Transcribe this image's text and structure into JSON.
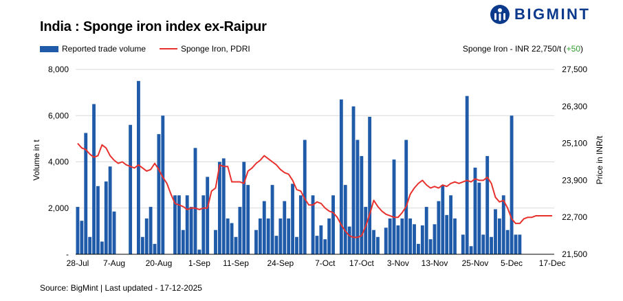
{
  "title": "India : Sponge iron index ex-Raipur",
  "brand": {
    "name": "BIGMINT",
    "logo_icon": "bigmint-logo-icon",
    "color": "#0b3a8c"
  },
  "legend": {
    "bar_label": "Reported trade volume",
    "line_label": "Sponge Iron, PDRI"
  },
  "price_note": {
    "label": "Sponge Iron - INR 22,750/t (",
    "change": "+50",
    "close": ")"
  },
  "source": "Source: BigMint | Last updated - 17-12-2025",
  "colors": {
    "bars": "#1f5ba8",
    "line": "#e8302c",
    "grid": "#d9d9d9",
    "positive": "#2ca02c"
  },
  "chart_data": {
    "type": "bar+line",
    "title": "India : Sponge iron index ex-Raipur",
    "ylabel": "Volume in t",
    "y2label": "Price in INR/t",
    "ylim": [
      0,
      8000
    ],
    "y2lim": [
      21500,
      27500
    ],
    "y_ticks": [
      "-",
      "2,000",
      "4,000",
      "6,000",
      "8,000"
    ],
    "y_tick_values": [
      0,
      2000,
      4000,
      6000,
      8000
    ],
    "y2_ticks": [
      "21,500",
      "22,700",
      "23,900",
      "25,100",
      "26,300",
      "27,500"
    ],
    "y2_tick_values": [
      21500,
      22700,
      23900,
      25100,
      26300,
      27500
    ],
    "x_ticks": [
      {
        "label": "28-Jul",
        "index": 0
      },
      {
        "label": "7-Aug",
        "index": 9
      },
      {
        "label": "20-Aug",
        "index": 20
      },
      {
        "label": "1-Sep",
        "index": 30
      },
      {
        "label": "11-Sep",
        "index": 39
      },
      {
        "label": "24-Sep",
        "index": 50
      },
      {
        "label": "7-Oct",
        "index": 61
      },
      {
        "label": "17-Oct",
        "index": 70
      },
      {
        "label": "3-Nov",
        "index": 79
      },
      {
        "label": "13-Nov",
        "index": 88
      },
      {
        "label": "25-Nov",
        "index": 98
      },
      {
        "label": "5-Dec",
        "index": 107
      },
      {
        "label": "17-Dec",
        "index": 117
      }
    ],
    "count": 118,
    "series": [
      {
        "name": "Reported trade volume",
        "type": "bar",
        "values": [
          2050,
          1450,
          5250,
          750,
          6500,
          2950,
          550,
          3150,
          3800,
          1850,
          0,
          0,
          0,
          5600,
          0,
          7500,
          750,
          1550,
          2050,
          450,
          5200,
          6000,
          0,
          0,
          2550,
          2550,
          1050,
          2550,
          2050,
          4600,
          200,
          2550,
          3350,
          0,
          1050,
          4000,
          4150,
          1550,
          1350,
          750,
          2050,
          4000,
          3000,
          0,
          1050,
          1550,
          2300,
          1550,
          3000,
          800,
          1550,
          2300,
          1550,
          3050,
          750,
          2550,
          4950,
          0,
          2550,
          800,
          1250,
          650,
          1550,
          2550,
          0,
          6700,
          3000,
          1200,
          6400,
          4950,
          4250,
          2050,
          5950,
          1050,
          750,
          0,
          1150,
          1550,
          4100,
          1250,
          1550,
          4950,
          1550,
          1300,
          450,
          1250,
          2050,
          650,
          1300,
          2300,
          3000,
          1700,
          2550,
          1550,
          0,
          850,
          6850,
          350,
          3750,
          3100,
          850,
          4250,
          750,
          1950,
          1550,
          2550,
          1050,
          6000,
          850,
          850,
          0,
          0,
          0,
          0,
          0,
          0,
          0,
          0
        ],
        "note": "bars only through index 109; 0 = no reported volume"
      },
      {
        "name": "Sponge Iron, PDRI",
        "type": "line",
        "values": [
          25100,
          24950,
          24900,
          24750,
          24650,
          24700,
          25050,
          24950,
          24700,
          24550,
          24450,
          24500,
          24400,
          24350,
          24300,
          24400,
          24300,
          24200,
          24250,
          24450,
          24250,
          24000,
          23800,
          23450,
          23150,
          23100,
          23050,
          22950,
          23000,
          23000,
          22950,
          23000,
          23000,
          23550,
          23650,
          24400,
          24350,
          24350,
          23850,
          23850,
          23850,
          23800,
          24200,
          24300,
          24450,
          24550,
          24700,
          24600,
          24500,
          24400,
          24250,
          24150,
          24100,
          23900,
          23600,
          23550,
          23300,
          23100,
          23100,
          23200,
          23150,
          23000,
          22900,
          22850,
          22700,
          22450,
          22250,
          22100,
          22050,
          22050,
          22100,
          22400,
          22800,
          23250,
          23050,
          22900,
          22800,
          22750,
          22700,
          22700,
          22850,
          23050,
          23450,
          23650,
          23800,
          23900,
          23750,
          23650,
          23700,
          23650,
          23750,
          23700,
          23800,
          23850,
          23800,
          23850,
          23900,
          23850,
          23950,
          23900,
          23900,
          24000,
          23800,
          23350,
          23200,
          23250,
          23000,
          22650,
          22500,
          22500,
          22650,
          22700,
          22700,
          22750,
          22750,
          22750,
          22750,
          22750
        ]
      }
    ]
  }
}
